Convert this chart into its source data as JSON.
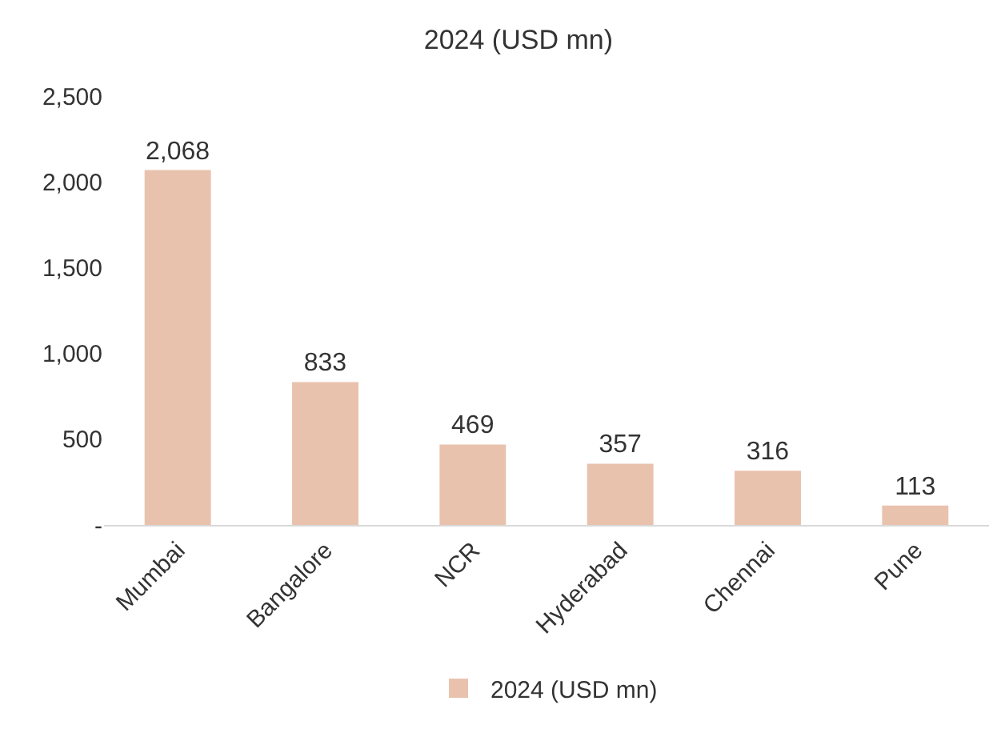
{
  "chart_data": {
    "type": "bar",
    "title": "2024 (USD mn)",
    "categories": [
      "Mumbai",
      "Bangalore",
      "NCR",
      "Hyderabad",
      "Chennai",
      "Pune"
    ],
    "series": [
      {
        "name": "2024 (USD mn)",
        "color": "#e9c2ae",
        "values": [
          2068,
          833,
          469,
          357,
          316,
          113
        ],
        "value_labels": [
          "2,068",
          "833",
          "469",
          "357",
          "316",
          "113"
        ]
      }
    ],
    "ylim": [
      0,
      2500
    ],
    "yticks": [
      {
        "value": 0,
        "label": "-"
      },
      500,
      {
        "value": 1000,
        "label": "1,000"
      },
      {
        "value": 1500,
        "label": "1,500"
      },
      {
        "value": 2000,
        "label": "2,000"
      },
      {
        "value": 2500,
        "label": "2,500"
      }
    ],
    "grid": false,
    "legend": "bottom"
  }
}
